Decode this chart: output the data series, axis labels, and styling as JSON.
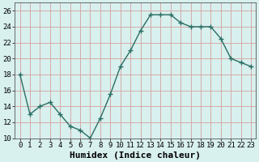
{
  "x": [
    0,
    1,
    2,
    3,
    4,
    5,
    6,
    7,
    8,
    9,
    10,
    11,
    12,
    13,
    14,
    15,
    16,
    17,
    18,
    19,
    20,
    21,
    22,
    23
  ],
  "y": [
    18,
    13,
    14,
    14.5,
    13,
    11.5,
    11,
    10,
    12.5,
    15.5,
    19,
    21,
    23.5,
    25.5,
    25.5,
    25.5,
    24.5,
    24,
    24,
    24,
    22.5,
    20,
    19.5,
    19
  ],
  "line_color": "#2a6e63",
  "marker": "+",
  "marker_size": 4,
  "bg_color": "#d8f0ee",
  "grid_color": "#c0d8d8",
  "xlabel": "Humidex (Indice chaleur)",
  "ylim": [
    10,
    27
  ],
  "xlim": [
    -0.5,
    23.5
  ],
  "yticks": [
    10,
    12,
    14,
    16,
    18,
    20,
    22,
    24,
    26
  ],
  "xtick_labels": [
    "0",
    "1",
    "2",
    "3",
    "4",
    "5",
    "6",
    "7",
    "8",
    "9",
    "10",
    "11",
    "12",
    "13",
    "14",
    "15",
    "16",
    "17",
    "18",
    "19",
    "20",
    "21",
    "22",
    "23"
  ],
  "tick_fontsize": 6.5,
  "xlabel_fontsize": 8
}
